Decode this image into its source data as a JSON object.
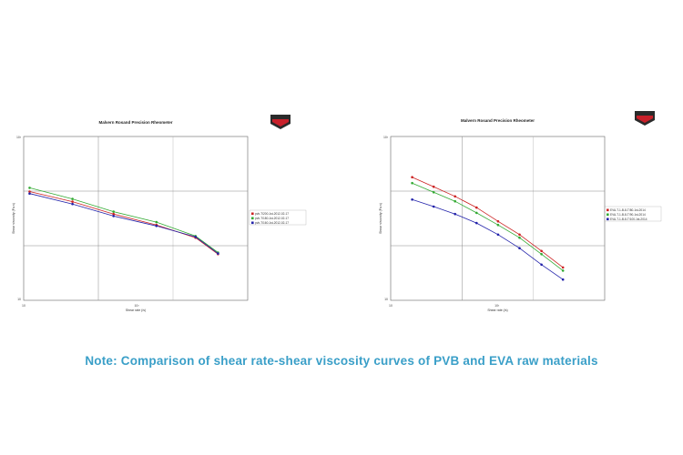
{
  "note": "Note: Comparison of shear rate-shear viscosity curves of PVB and EVA raw materials",
  "chart_data": [
    {
      "type": "line",
      "title": "Malvern Rosand Precision Rheometer",
      "xlabel": "Shear rate (/s)",
      "ylabel": "Shear viscosity (Pa.s)",
      "x_scale": "log",
      "y_scale": "log",
      "xlim": [
        10,
        10000
      ],
      "ylim": [
        10,
        10000
      ],
      "x_ticks": [
        "10",
        "10³"
      ],
      "y_ticks": [
        "10",
        "10³"
      ],
      "legend_position": "right",
      "grid": true,
      "series": [
        {
          "name": "pvb-T/200-1st-2012-02-17",
          "color": "#cc2222",
          "x": [
            12,
            45,
            160,
            600,
            2000,
            4000
          ],
          "y": [
            980,
            640,
            380,
            240,
            140,
            70
          ]
        },
        {
          "name": "pvb-T/180-1st-2012-02-17",
          "color": "#33aa33",
          "x": [
            12,
            45,
            160,
            600,
            2000,
            4000
          ],
          "y": [
            1150,
            720,
            420,
            270,
            150,
            75
          ]
        },
        {
          "name": "pvb-T/160-1st-2012-02-17",
          "color": "#2222aa",
          "x": [
            12,
            45,
            160,
            600,
            2000,
            4000
          ],
          "y": [
            900,
            580,
            350,
            230,
            145,
            72
          ]
        }
      ]
    },
    {
      "type": "line",
      "title": "Malvern Rosand Precision Rheometer",
      "xlabel": "Shear rate (/s)",
      "ylabel": "Shear viscosity (Pa.s)",
      "x_scale": "log",
      "y_scale": "log",
      "xlim": [
        10,
        10000
      ],
      "ylim": [
        10,
        10000
      ],
      "x_ticks": [
        "10",
        "10³"
      ],
      "y_ticks": [
        "10",
        "10³"
      ],
      "legend_position": "right",
      "grid": true,
      "series": [
        {
          "name": "EVA-T-1-B-8-T/80-1st-2014",
          "color": "#cc2222",
          "x": [
            20,
            40,
            80,
            160,
            320,
            640,
            1300,
            2600
          ],
          "y": [
            1800,
            1200,
            800,
            500,
            280,
            160,
            80,
            40
          ]
        },
        {
          "name": "EVA-T-1-B-8-T/90-1st-2014",
          "color": "#33aa33",
          "x": [
            20,
            40,
            80,
            160,
            320,
            640,
            1300,
            2600
          ],
          "y": [
            1400,
            950,
            650,
            400,
            240,
            140,
            70,
            35
          ]
        },
        {
          "name": "EVA-T-1-B-8-T/100-1st-2014",
          "color": "#2222aa",
          "x": [
            20,
            40,
            80,
            160,
            320,
            640,
            1300,
            2600
          ],
          "y": [
            700,
            520,
            380,
            260,
            160,
            90,
            45,
            24
          ]
        }
      ]
    }
  ]
}
